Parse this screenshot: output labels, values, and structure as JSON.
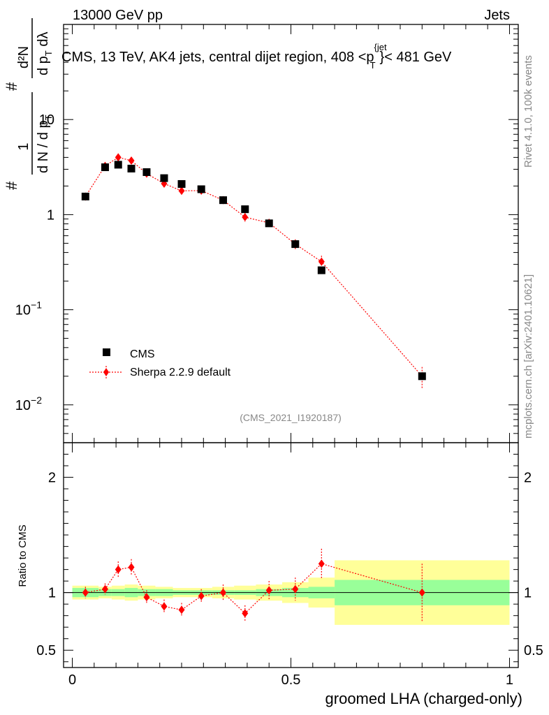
{
  "header": {
    "left": "13000 GeV pp",
    "right": "Jets",
    "title_prefix": "CMS, 13 TeV, AK4 jets, central dijet region, 408 <p",
    "title_sup": "{jet",
    "title_sub": "T",
    "title_suffix": "}< 481 GeV"
  },
  "side_labels": {
    "rivet": "Rivet 4.1.0,  100k events",
    "mcplots": "mcplots.cern.ch [arXiv:2401.10621]"
  },
  "ylabel_main": {
    "hash1": "#",
    "num1": "1",
    "den1": "d N / d p",
    "den1_sub": "T",
    "hash2": "#",
    "num2": "d²N",
    "den2": "d p",
    "den2_sub": "T",
    "den2_tail": " dλ"
  },
  "watermark": "(CMS_2021_I1920187)",
  "legend": {
    "data_label": "CMS",
    "mc_label": "Sherpa 2.2.9 default"
  },
  "ratio_ylabel": "Ratio to CMS",
  "xlabel": "groomed LHA (charged-only)",
  "colors": {
    "data": "#000000",
    "mc": "#ff0000",
    "band_inner": "#99ff99",
    "band_outer": "#ffff99"
  },
  "chart_data": {
    "type": "scatter",
    "title": "CMS, 13 TeV, AK4 jets, central dijet region, 408 < pT jet < 481 GeV",
    "xlabel": "groomed LHA (charged-only)",
    "ylabel": "1/(dN/dpT) d²N/(dpT dλ)",
    "xlim": [
      -0.02,
      1.02
    ],
    "ylim_main": [
      0.004,
      100
    ],
    "yscale_main": "log",
    "ylim_ratio": [
      0.35,
      2.3
    ],
    "x_ticks": [
      {
        "value": 0,
        "label": "0"
      },
      {
        "value": 0.5,
        "label": "0.5"
      },
      {
        "value": 1,
        "label": "1"
      }
    ],
    "y_ticks_main": [
      {
        "value": 0.01,
        "base": "10",
        "exp": "−2"
      },
      {
        "value": 0.1,
        "base": "10",
        "exp": "−1"
      },
      {
        "value": 1,
        "base": "1",
        "exp": ""
      },
      {
        "value": 10,
        "base": "10",
        "exp": ""
      }
    ],
    "y_ticks_ratio": [
      {
        "value": 0.5,
        "label": "0.5"
      },
      {
        "value": 1,
        "label": "1"
      },
      {
        "value": 2,
        "label": "2"
      }
    ],
    "series": [
      {
        "name": "CMS",
        "x": [
          0.03,
          0.075,
          0.105,
          0.135,
          0.17,
          0.21,
          0.25,
          0.295,
          0.345,
          0.395,
          0.45,
          0.51,
          0.57,
          0.8
        ],
        "xlow": [
          0.0,
          0.06,
          0.09,
          0.12,
          0.15,
          0.19,
          0.23,
          0.27,
          0.32,
          0.37,
          0.42,
          0.48,
          0.54,
          0.6
        ],
        "xhigh": [
          0.06,
          0.09,
          0.12,
          0.15,
          0.19,
          0.23,
          0.27,
          0.32,
          0.37,
          0.42,
          0.48,
          0.54,
          0.6,
          1.0
        ],
        "y": [
          1.55,
          3.15,
          3.35,
          3.05,
          2.8,
          2.42,
          2.1,
          1.85,
          1.42,
          1.14,
          0.81,
          0.49,
          0.26,
          0.02
        ]
      },
      {
        "name": "Sherpa 2.2.9 default",
        "x": [
          0.03,
          0.075,
          0.105,
          0.135,
          0.17,
          0.21,
          0.25,
          0.295,
          0.345,
          0.395,
          0.45,
          0.51,
          0.57,
          0.8
        ],
        "y": [
          1.55,
          3.25,
          4.0,
          3.7,
          2.7,
          2.12,
          1.78,
          1.79,
          1.42,
          0.94,
          0.82,
          0.49,
          0.32,
          0.02
        ],
        "yerr": [
          0.1,
          0.15,
          0.25,
          0.25,
          0.18,
          0.15,
          0.15,
          0.13,
          0.12,
          0.1,
          0.08,
          0.06,
          0.05,
          0.005
        ]
      }
    ],
    "ratio": {
      "mc_ratio": [
        1.0,
        1.03,
        1.2,
        1.22,
        0.96,
        0.88,
        0.85,
        0.97,
        1.0,
        0.82,
        1.02,
        1.03,
        1.25,
        1.0
      ],
      "mc_ratio_err": [
        0.05,
        0.05,
        0.07,
        0.07,
        0.06,
        0.06,
        0.06,
        0.06,
        0.07,
        0.07,
        0.08,
        0.1,
        0.13,
        0.25
      ],
      "band_inner": [
        0.04,
        0.03,
        0.03,
        0.04,
        0.03,
        0.03,
        0.02,
        0.02,
        0.02,
        0.02,
        0.03,
        0.04,
        0.05,
        0.11
      ],
      "band_outer": [
        0.06,
        0.05,
        0.06,
        0.07,
        0.06,
        0.05,
        0.04,
        0.04,
        0.05,
        0.06,
        0.07,
        0.09,
        0.13,
        0.28
      ]
    }
  }
}
